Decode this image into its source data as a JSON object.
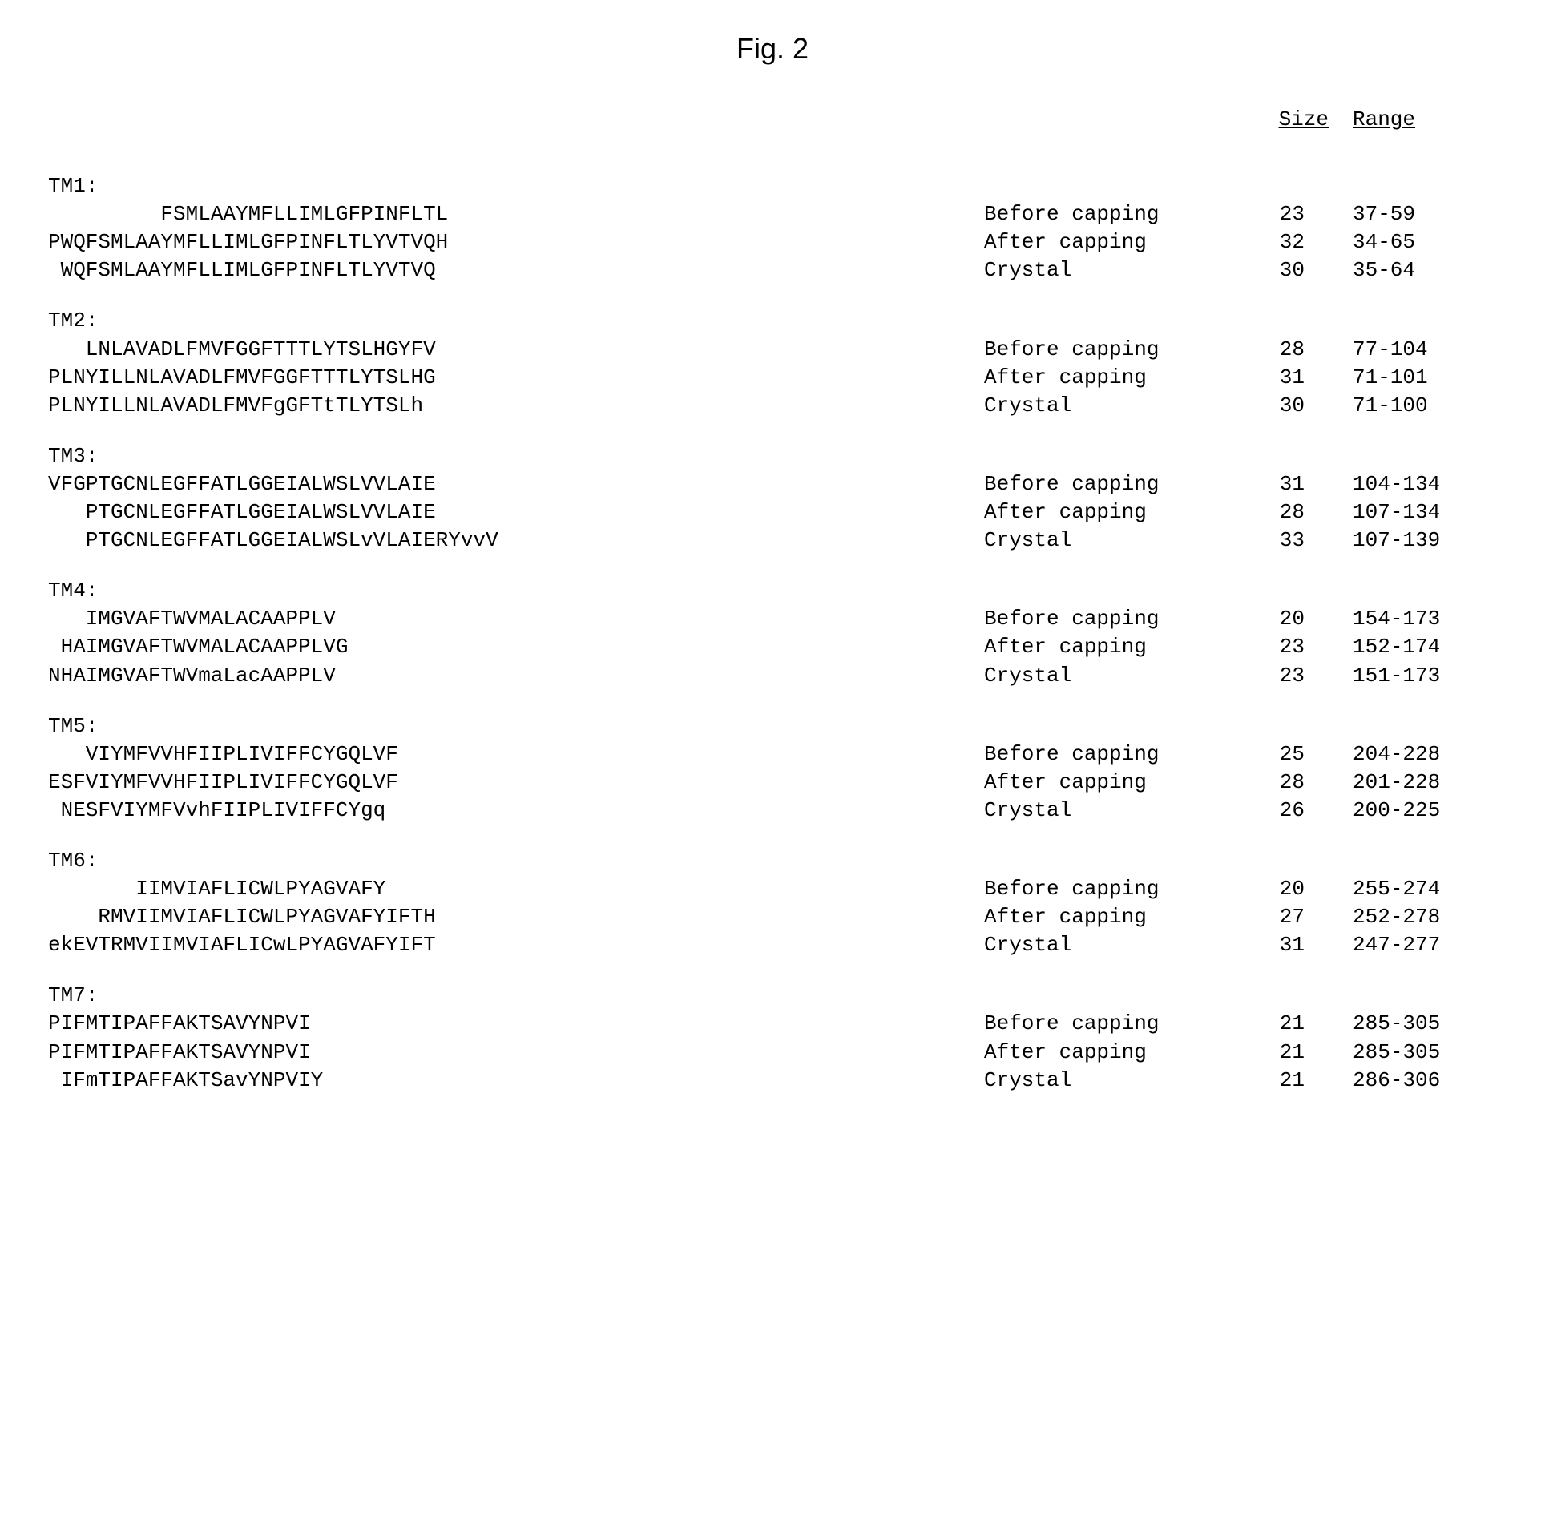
{
  "title": "Fig. 2",
  "headers": {
    "sequence": "",
    "stage": "",
    "size": "Size",
    "range": "Range"
  },
  "domains": [
    {
      "label": "TM1:",
      "rows": [
        {
          "seq": "         FSMLAAYMFLLIMLGFPINFLTL",
          "stage": "Before capping",
          "size": "23",
          "range": "37-59"
        },
        {
          "seq": "PWQFSMLAAYMFLLIMLGFPINFLTLYVTVQH",
          "stage": "After capping",
          "size": "32",
          "range": "34-65"
        },
        {
          "seq": " WQFSMLAAYMFLLIMLGFPINFLTLYVTVQ",
          "stage": "Crystal",
          "size": "30",
          "range": "35-64"
        }
      ]
    },
    {
      "label": "TM2:",
      "rows": [
        {
          "seq": "   LNLAVADLFMVFGGFTTTLYTSLHGYFV",
          "stage": "Before capping",
          "size": "28",
          "range": "77-104"
        },
        {
          "seq": "PLNYILLNLAVADLFMVFGGFTTTLYTSLHG",
          "stage": "After capping",
          "size": "31",
          "range": "71-101"
        },
        {
          "seq": "PLNYILLNLAVADLFMVFgGFTtTLYTSLh",
          "stage": "Crystal",
          "size": "30",
          "range": "71-100"
        }
      ]
    },
    {
      "label": "TM3:",
      "rows": [
        {
          "seq": "VFGPTGCNLEGFFATLGGEIALWSLVVLAIE",
          "stage": "Before capping",
          "size": "31",
          "range": "104-134"
        },
        {
          "seq": "   PTGCNLEGFFATLGGEIALWSLVVLAIE",
          "stage": "After capping",
          "size": "28",
          "range": "107-134"
        },
        {
          "seq": "   PTGCNLEGFFATLGGEIALWSLvVLAIERYvvV",
          "stage": "Crystal",
          "size": "33",
          "range": "107-139"
        }
      ]
    },
    {
      "label": "TM4:",
      "rows": [
        {
          "seq": "   IMGVAFTWVMALACAAPPLV",
          "stage": "Before capping",
          "size": "20",
          "range": "154-173"
        },
        {
          "seq": " HAIMGVAFTWVMALACAAPPLVG",
          "stage": "After capping",
          "size": "23",
          "range": "152-174"
        },
        {
          "seq": "NHAIMGVAFTWVmaLacAAPPLV",
          "stage": "Crystal",
          "size": "23",
          "range": "151-173"
        }
      ]
    },
    {
      "label": "TM5:",
      "rows": [
        {
          "seq": "   VIYMFVVHFIIPLIVIFFCYGQLVF",
          "stage": "Before capping",
          "size": "25",
          "range": "204-228"
        },
        {
          "seq": "ESFVIYMFVVHFIIPLIVIFFCYGQLVF",
          "stage": "After capping",
          "size": "28",
          "range": "201-228"
        },
        {
          "seq": " NESFVIYMFVvhFIIPLIVIFFCYgq",
          "stage": "Crystal",
          "size": "26",
          "range": "200-225"
        }
      ]
    },
    {
      "label": "TM6:",
      "rows": [
        {
          "seq": "       IIMVIAFLICWLPYAGVAFY",
          "stage": "Before capping",
          "size": "20",
          "range": "255-274"
        },
        {
          "seq": "    RMVIIMVIAFLICWLPYAGVAFYIFTH",
          "stage": "After capping",
          "size": "27",
          "range": "252-278"
        },
        {
          "seq": "ekEVTRMVIIMVIAFLICwLPYAGVAFYIFT",
          "stage": "Crystal",
          "size": "31",
          "range": "247-277"
        }
      ]
    },
    {
      "label": "TM7:",
      "rows": [
        {
          "seq": "PIFMTIPAFFAKTSAVYNPVI",
          "stage": "Before capping",
          "size": "21",
          "range": "285-305"
        },
        {
          "seq": "PIFMTIPAFFAKTSAVYNPVI",
          "stage": "After capping",
          "size": "21",
          "range": "285-305"
        },
        {
          "seq": " IFmTIPAFFAKTSavYNPVIY",
          "stage": "Crystal",
          "size": "21",
          "range": "286-306"
        }
      ]
    }
  ]
}
